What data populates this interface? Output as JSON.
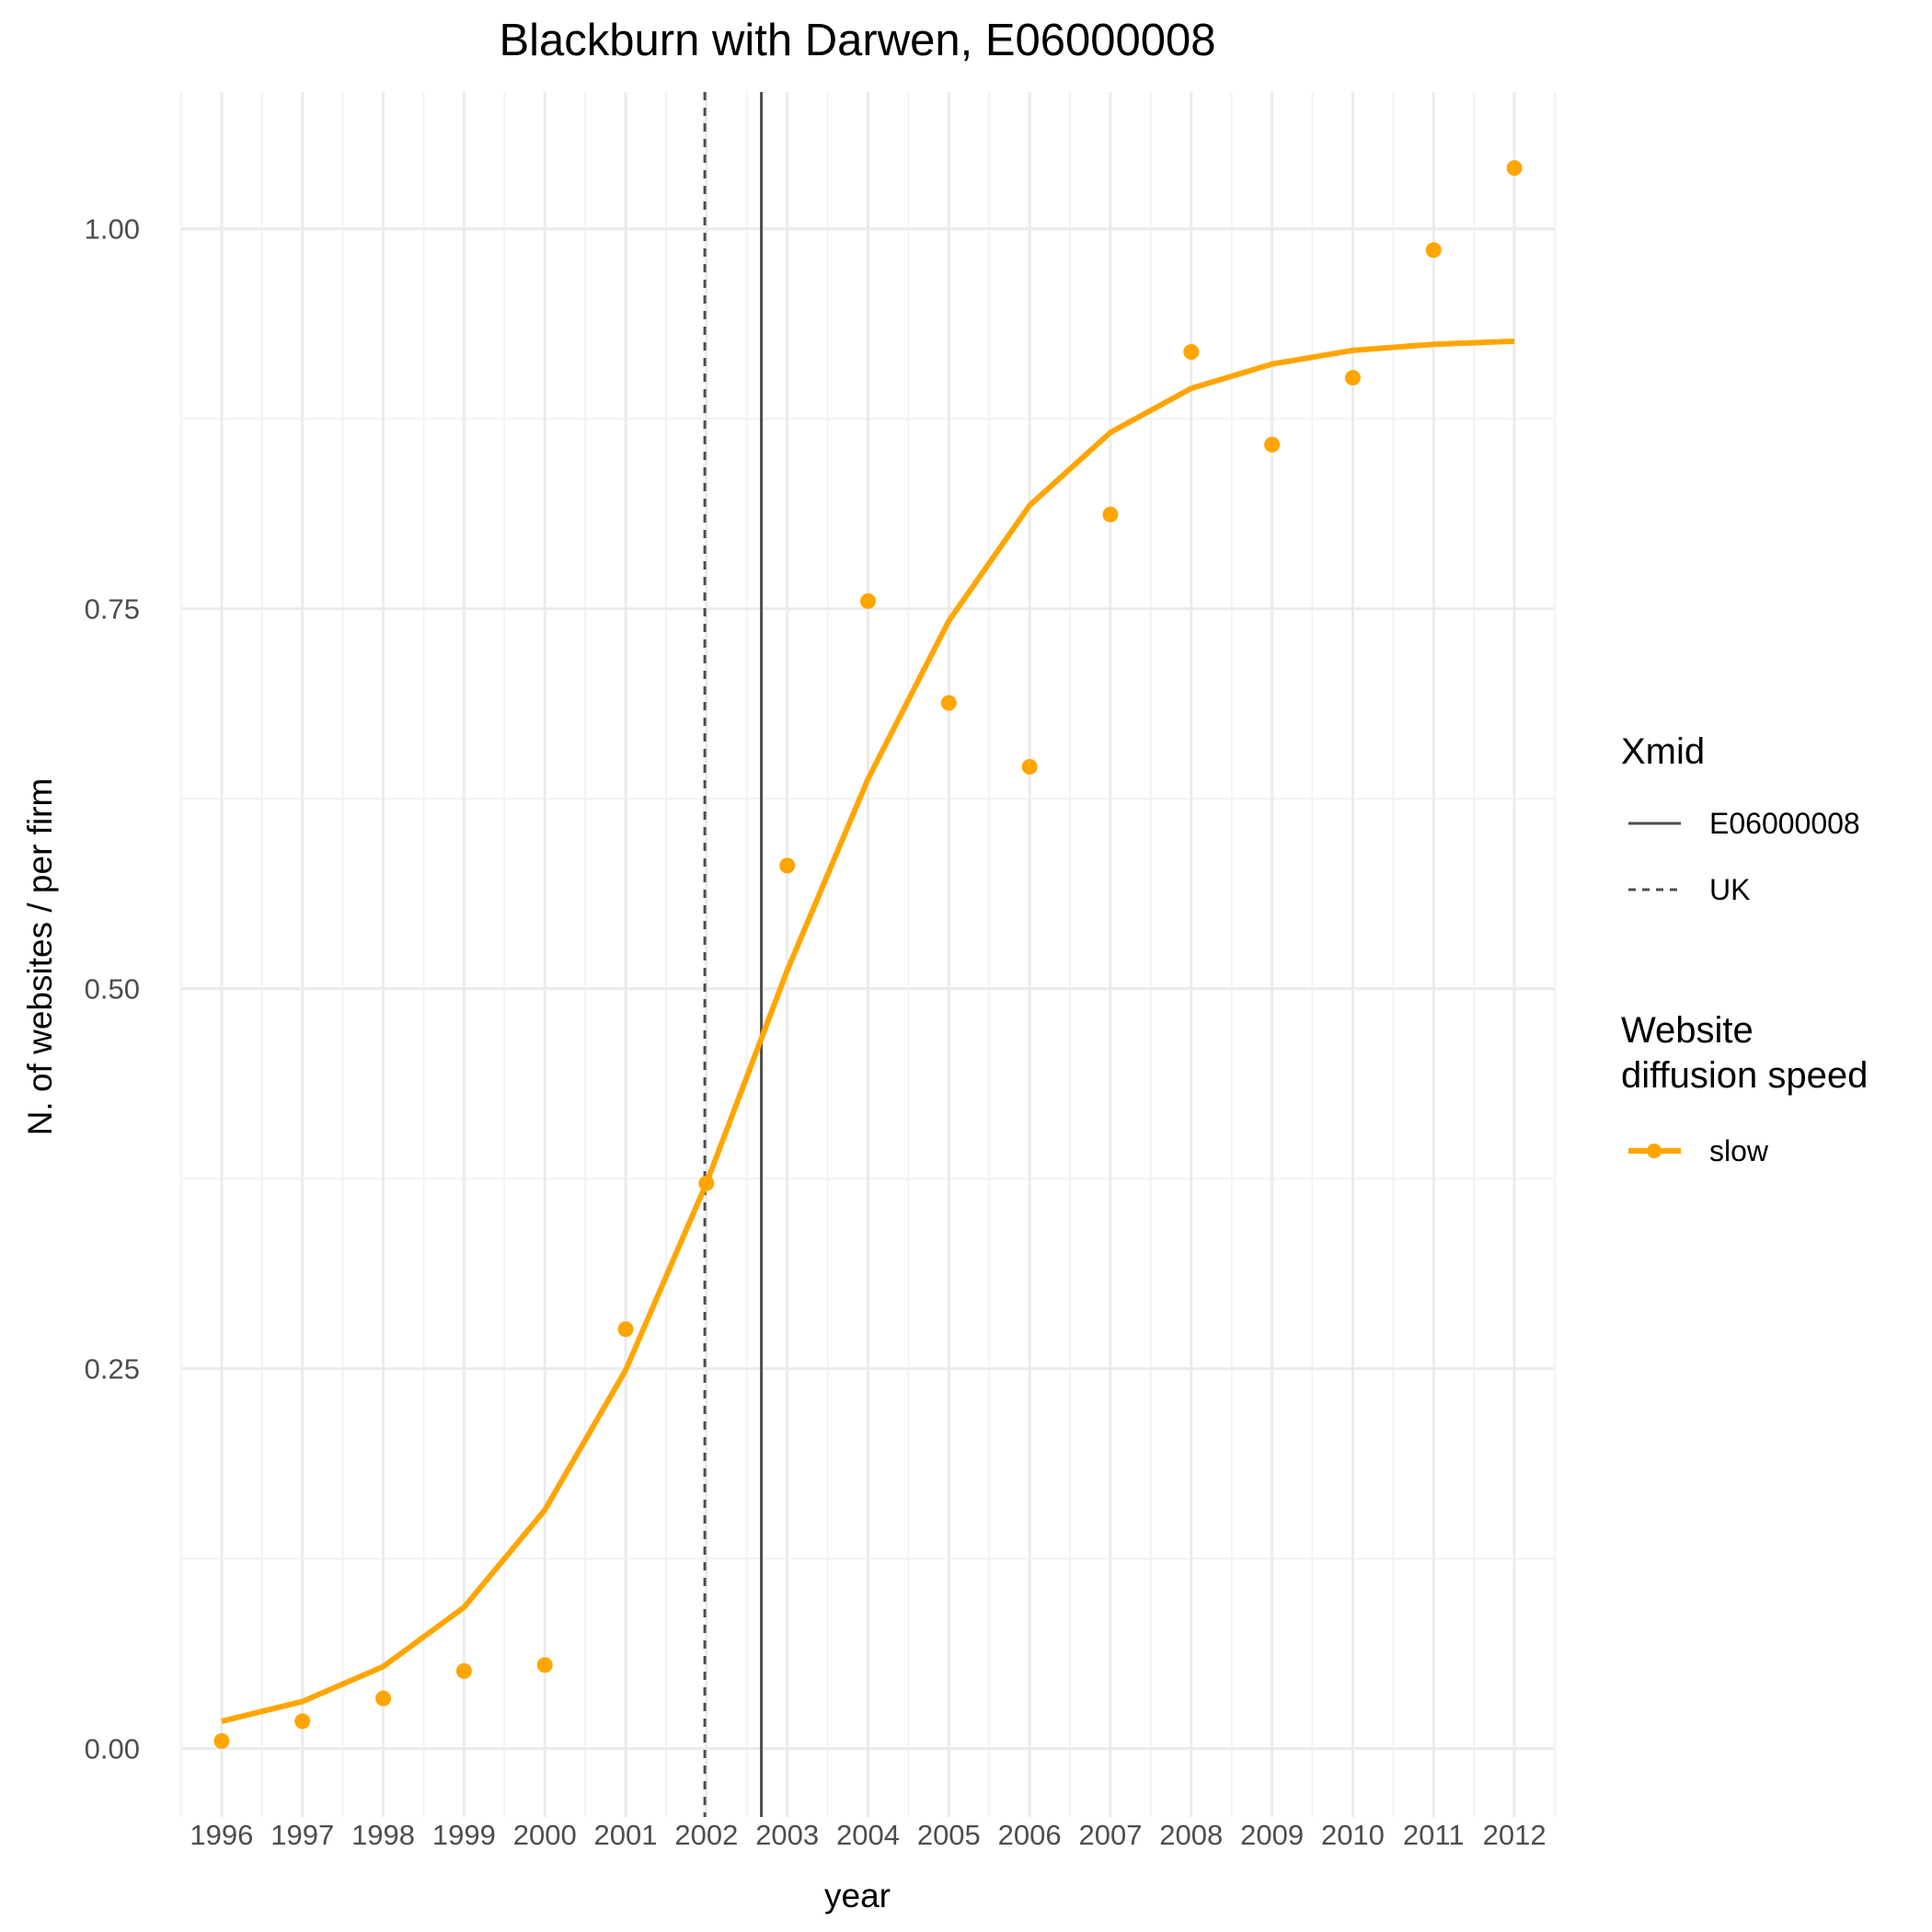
{
  "colors": {
    "series": "#FFA500",
    "vline": "#4d4d4d",
    "grid_major": "#ebebeb",
    "grid_minor": "#f3f3f3"
  },
  "chart_data": {
    "type": "line",
    "title": "Blackburn with Darwen, E06000008",
    "xlabel": "year",
    "ylabel": "N. of websites / per firm",
    "x": [
      1996,
      1997,
      1998,
      1999,
      2000,
      2001,
      2002,
      2003,
      2004,
      2005,
      2006,
      2007,
      2008,
      2009,
      2010,
      2011,
      2012
    ],
    "x_tick_labels": [
      "1996",
      "1997",
      "1998",
      "1999",
      "2000",
      "2001",
      "2002",
      "2003",
      "2004",
      "2005",
      "2006",
      "2007",
      "2008",
      "2009",
      "2010",
      "2011",
      "2012"
    ],
    "y_ticks": [
      0.0,
      0.25,
      0.5,
      0.75,
      1.0
    ],
    "y_tick_labels": [
      "0.00",
      "0.25",
      "0.50",
      "0.75",
      "1.00"
    ],
    "xlim": [
      1995.5,
      2012.5
    ],
    "ylim": [
      -0.045,
      1.09
    ],
    "grid": true,
    "series": [
      {
        "name": "slow",
        "points": [
          0.005,
          0.018,
          0.033,
          0.051,
          0.055,
          0.276,
          0.372,
          0.581,
          0.755,
          0.688,
          0.646,
          0.812,
          0.919,
          0.858,
          0.902,
          0.986,
          1.04
        ],
        "fitted": [
          0.018,
          0.031,
          0.054,
          0.093,
          0.157,
          0.249,
          0.372,
          0.512,
          0.638,
          0.742,
          0.818,
          0.866,
          0.895,
          0.911,
          0.92,
          0.924,
          0.926
        ]
      }
    ],
    "vlines": [
      {
        "name": "E06000008",
        "x": 2002.68,
        "linetype": "solid"
      },
      {
        "name": "UK",
        "x": 2001.98,
        "linetype": "dashed"
      }
    ],
    "legends": [
      {
        "title": "Xmid",
        "items": [
          "E06000008",
          "UK"
        ]
      },
      {
        "title_lines": [
          "Website",
          "diffusion speed"
        ],
        "items": [
          "slow"
        ]
      }
    ],
    "legend_position": "right"
  }
}
